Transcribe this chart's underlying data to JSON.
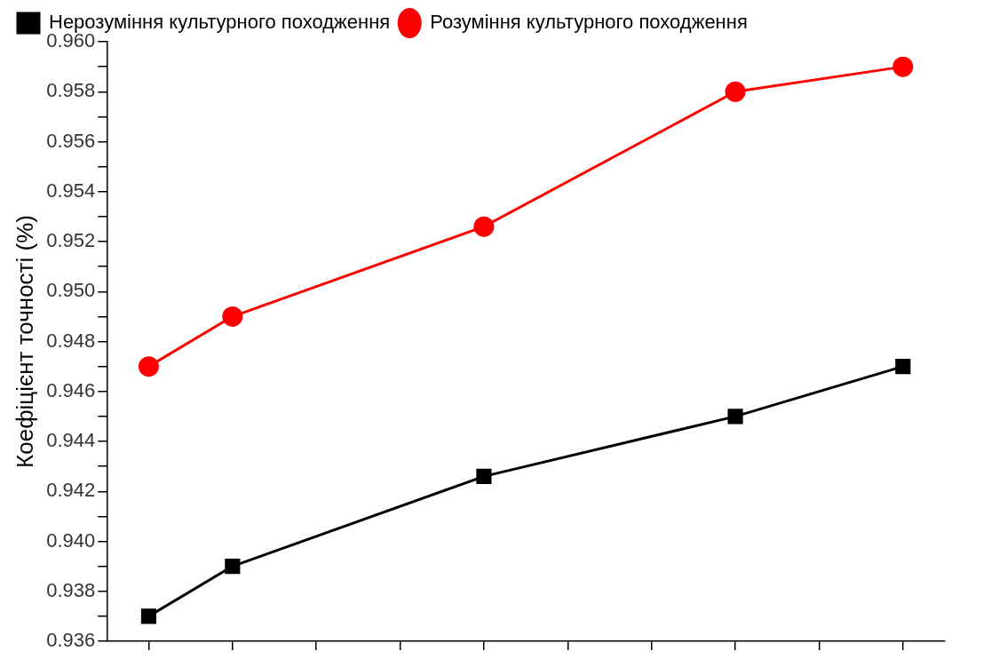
{
  "chart_data": {
    "type": "line",
    "ylabel": "Коефіцієнт точності (%)",
    "categories": [
      null,
      null,
      null,
      null,
      null,
      null,
      null,
      null,
      null,
      null
    ],
    "series": [
      {
        "name": "Нерозуміння культурного походження",
        "color": "#000000",
        "marker": "square",
        "values": [
          0.937,
          0.939,
          null,
          null,
          0.9426,
          null,
          null,
          0.945,
          null,
          0.947
        ]
      },
      {
        "name": "Розуміння культурного походження",
        "color": "#ff0000",
        "marker": "circle",
        "values": [
          0.947,
          0.949,
          null,
          null,
          0.9526,
          null,
          null,
          0.958,
          null,
          0.959
        ]
      }
    ],
    "ylim": [
      0.936,
      0.96
    ],
    "yticks": [
      0.936,
      {
        "value": 0.937,
        "label": null
      },
      0.938,
      {
        "value": 0.939,
        "label": null
      },
      {
        "value": 0.94,
        "label": "0.940"
      },
      {
        "value": 0.941,
        "label": null
      },
      0.942,
      {
        "value": 0.943,
        "label": null
      },
      0.944,
      {
        "value": 0.945,
        "label": null
      },
      0.946,
      {
        "value": 0.947,
        "label": null
      },
      0.948,
      {
        "value": 0.949,
        "label": null
      },
      {
        "value": 0.95,
        "label": "0.950"
      },
      {
        "value": 0.951,
        "label": null
      },
      0.952,
      {
        "value": 0.953,
        "label": null
      },
      0.954,
      {
        "value": 0.955,
        "label": null
      },
      0.956,
      {
        "value": 0.957,
        "label": null
      },
      0.958,
      {
        "value": 0.959,
        "label": null
      },
      {
        "value": 0.96,
        "label": "0.960"
      }
    ],
    "grid": false,
    "legend": "top left",
    "line_style": "solid",
    "tick_labels": "y"
  }
}
